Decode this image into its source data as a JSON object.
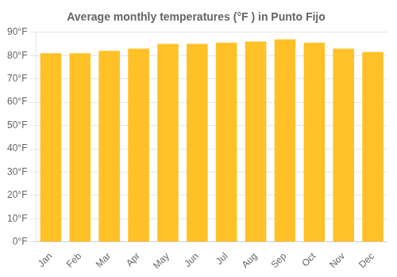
{
  "chart_data": {
    "type": "bar",
    "title": "Average monthly temperatures (°F ) in Punto Fijo",
    "categories": [
      "Jan",
      "Feb",
      "Mar",
      "Apr",
      "May",
      "Jun",
      "Jul",
      "Aug",
      "Sep",
      "Oct",
      "Nov",
      "Dec"
    ],
    "values": [
      81,
      81,
      82,
      83,
      85,
      85,
      85.5,
      86,
      87,
      85.5,
      83,
      81.5
    ],
    "color": "#FFC125",
    "ylim": [
      0,
      90
    ],
    "yticks": [
      {
        "value": 0,
        "label": "0°F"
      },
      {
        "value": 10,
        "label": "10°F"
      },
      {
        "value": 20,
        "label": "20°F"
      },
      {
        "value": 30,
        "label": "30°F"
      },
      {
        "value": 40,
        "label": "40°F"
      },
      {
        "value": 50,
        "label": "50°F"
      },
      {
        "value": 60,
        "label": "60°F"
      },
      {
        "value": 70,
        "label": "70°F"
      },
      {
        "value": 80,
        "label": "80°F"
      },
      {
        "value": 90,
        "label": "90°F"
      }
    ],
    "grid": true
  }
}
